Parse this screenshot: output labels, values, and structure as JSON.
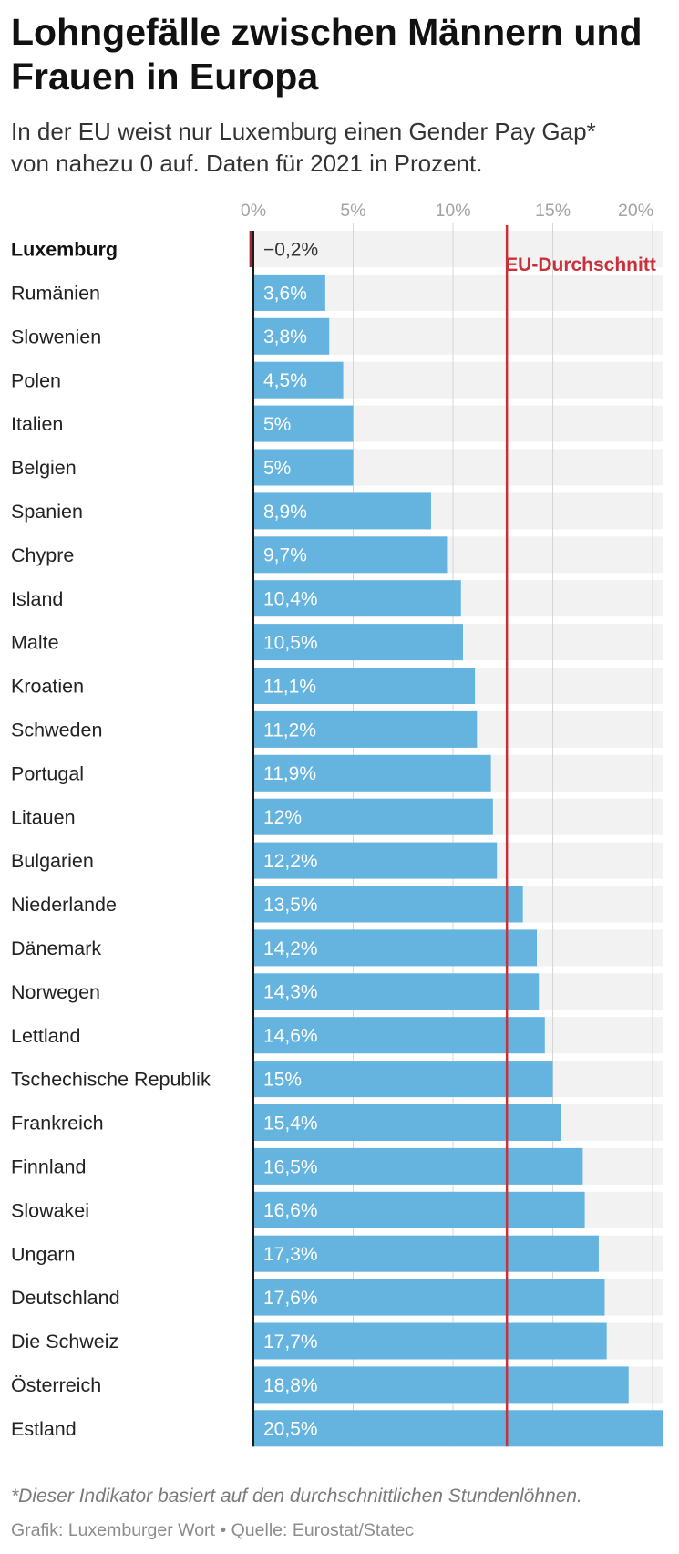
{
  "chart_data": {
    "type": "bar",
    "title": "Lohngefälle zwischen Männern und Frauen in Europa",
    "subtitle": "In der EU weist nur Luxemburg einen Gender Pay Gap* von nahezu 0 auf. Daten für 2021 in Prozent.",
    "categories": [
      "Luxemburg",
      "Rumänien",
      "Slowenien",
      "Polen",
      "Italien",
      "Belgien",
      "Spanien",
      "Chypre",
      "Island",
      "Malte",
      "Kroatien",
      "Schweden",
      "Portugal",
      "Litauen",
      "Bulgarien",
      "Niederlande",
      "Dänemark",
      "Norwegen",
      "Lettland",
      "Tschechische Republik",
      "Frankreich",
      "Finnland",
      "Slowakei",
      "Ungarn",
      "Deutschland",
      "Die Schweiz",
      "Österreich",
      "Estland"
    ],
    "values": [
      -0.2,
      3.6,
      3.8,
      4.5,
      5,
      5,
      8.9,
      9.7,
      10.4,
      10.5,
      11.1,
      11.2,
      11.9,
      12,
      12.2,
      13.5,
      14.2,
      14.3,
      14.6,
      15,
      15.4,
      16.5,
      16.6,
      17.3,
      17.6,
      17.7,
      18.8,
      20.5
    ],
    "value_labels": [
      "−0,2%",
      "3,6%",
      "3,8%",
      "4,5%",
      "5%",
      "5%",
      "8,9%",
      "9,7%",
      "10,4%",
      "10,5%",
      "11,1%",
      "11,2%",
      "11,9%",
      "12%",
      "12,2%",
      "13,5%",
      "14,2%",
      "14,3%",
      "14,6%",
      "15%",
      "15,4%",
      "16,5%",
      "16,6%",
      "17,3%",
      "17,6%",
      "17,7%",
      "18,8%",
      "20,5%"
    ],
    "highlight_index": 0,
    "xlim": [
      0,
      20.5
    ],
    "xticks": [
      0,
      5,
      10,
      15,
      20
    ],
    "xtick_labels": [
      "0%",
      "5%",
      "10%",
      "15%",
      "20%"
    ],
    "grid": true,
    "reference_line": {
      "label": "EU-Durchschnitt",
      "value": 12.7
    },
    "footnote": "*Dieser Indikator basiert auf den durchschnittlichen Stundenlöhnen.",
    "source": "Grafik: Luxemburger Wort • Quelle: Eurostat/Statec"
  },
  "colors": {
    "bar": "#65b4e0",
    "negative_bar": "#a6262f",
    "band": "#f2f2f2",
    "grid": "#d6d6d6",
    "axis": "#1a1a1a",
    "reference_line": "#c8313a"
  }
}
